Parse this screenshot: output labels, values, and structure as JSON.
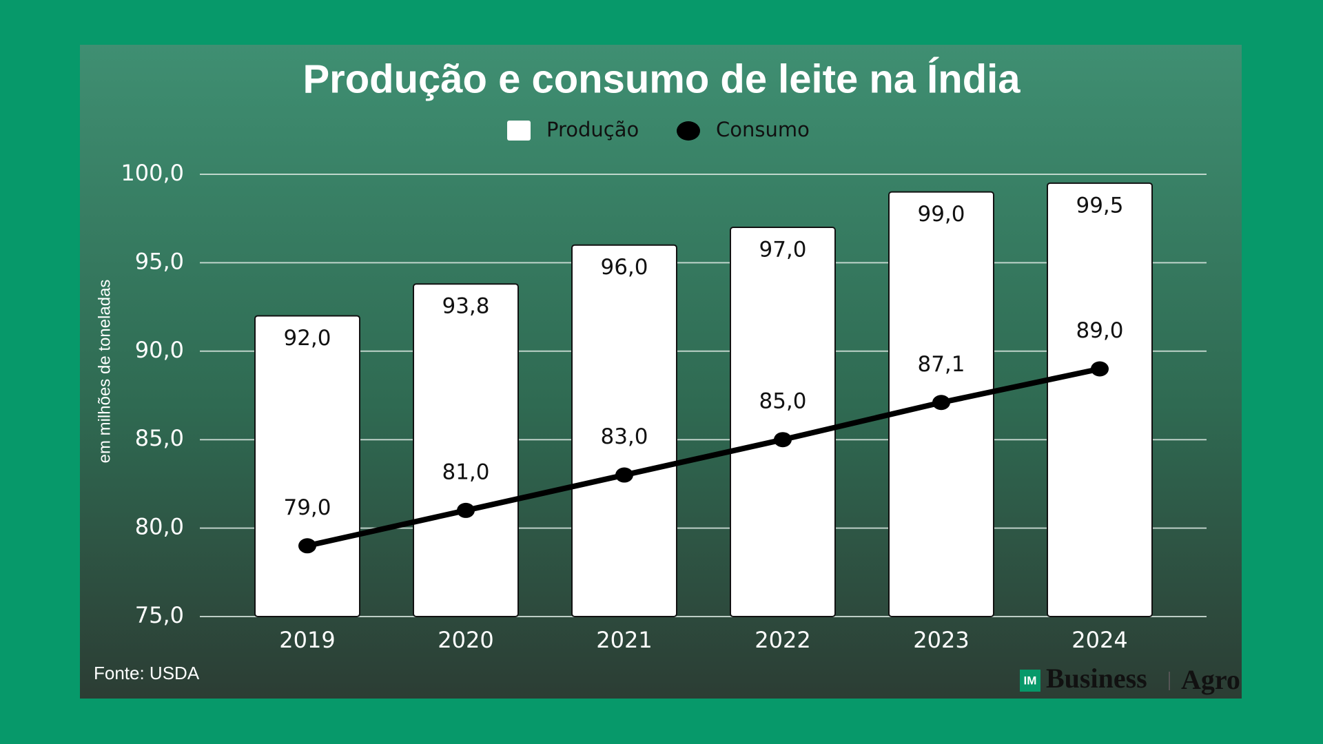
{
  "chart_data": {
    "type": "bar",
    "title": "Produção e consumo de leite na Índia",
    "y_label": "em milhões de toneladas",
    "categories": [
      "2019",
      "2020",
      "2021",
      "2022",
      "2023",
      "2024"
    ],
    "series": [
      {
        "name": "Produção",
        "type": "bar",
        "color": "#ffffff",
        "values": [
          92.0,
          93.8,
          96.0,
          97.0,
          99.0,
          99.5
        ],
        "value_labels": [
          "92,0",
          "93,8",
          "96,0",
          "97,0",
          "99,0",
          "99,5"
        ]
      },
      {
        "name": "Consumo",
        "type": "line",
        "color": "#000000",
        "values": [
          79.0,
          81.0,
          83.0,
          85.0,
          87.1,
          89.0
        ],
        "value_labels": [
          "79,0",
          "81,0",
          "83,0",
          "85,0",
          "87,1",
          "89,0"
        ]
      }
    ],
    "ylim": [
      75,
      100
    ],
    "yticks": [
      {
        "value": 75,
        "label": "75,0"
      },
      {
        "value": 80,
        "label": "80,0"
      },
      {
        "value": 85,
        "label": "85,0"
      },
      {
        "value": 90,
        "label": "90,0"
      },
      {
        "value": 95,
        "label": "95,0"
      },
      {
        "value": 100,
        "label": "100,0"
      }
    ],
    "grid": true,
    "legend": "top",
    "source": "Fonte: USDA",
    "logo": [
      "IM",
      "Business",
      "Agro"
    ]
  }
}
